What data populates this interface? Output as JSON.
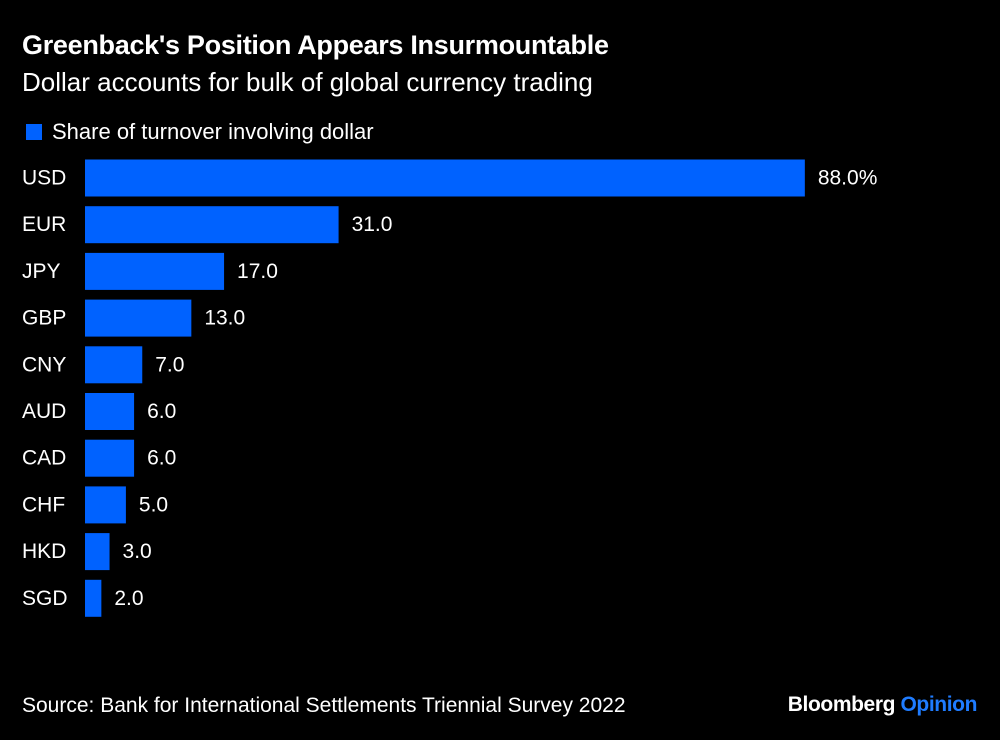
{
  "colors": {
    "background": "#000000",
    "bar": "#0062ff",
    "text": "#ffffff",
    "brand_accent": "#1f7cff"
  },
  "chart_data": {
    "type": "bar",
    "orientation": "horizontal",
    "title": "Greenback's Position Appears Insurmountable",
    "subtitle": "Dollar accounts for bulk of global currency trading",
    "categories": [
      "USD",
      "EUR",
      "JPY",
      "GBP",
      "CNY",
      "AUD",
      "CAD",
      "CHF",
      "HKD",
      "SGD"
    ],
    "series": [
      {
        "name": "Share of turnover involving dollar",
        "values": [
          88.0,
          31.0,
          17.0,
          13.0,
          7.0,
          6.0,
          6.0,
          5.0,
          3.0,
          2.0
        ]
      }
    ],
    "data_labels": [
      "88.0%",
      "31.0",
      "17.0",
      "13.0",
      "7.0",
      "6.0",
      "6.0",
      "5.0",
      "3.0",
      "2.0"
    ],
    "legend_position": "top-left",
    "grid": false
  },
  "footer": {
    "source": "Source: Bank for International Settlements Triennial Survey 2022",
    "brand_primary": "Bloomberg",
    "brand_secondary": "Opinion"
  }
}
